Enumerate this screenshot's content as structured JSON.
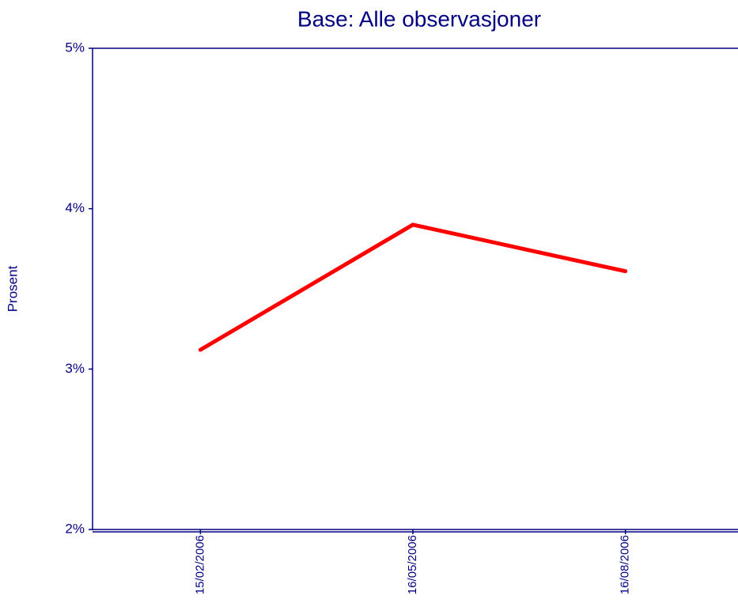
{
  "chart_data": {
    "type": "line",
    "title": "Base: Alle observasjoner",
    "y_label": "Prosent",
    "categories": [
      "15/02/2006",
      "16/05/2006",
      "16/08/2006"
    ],
    "series": [
      {
        "name": "Base",
        "color": "#ff0000",
        "values": [
          3.12,
          3.9,
          3.61
        ]
      }
    ],
    "ylim": [
      2,
      5
    ],
    "yticks": [
      {
        "value": 2,
        "label": "2%"
      },
      {
        "value": 3,
        "label": "3%"
      },
      {
        "value": 4,
        "label": "4%"
      },
      {
        "value": 5,
        "label": "5%"
      }
    ]
  }
}
